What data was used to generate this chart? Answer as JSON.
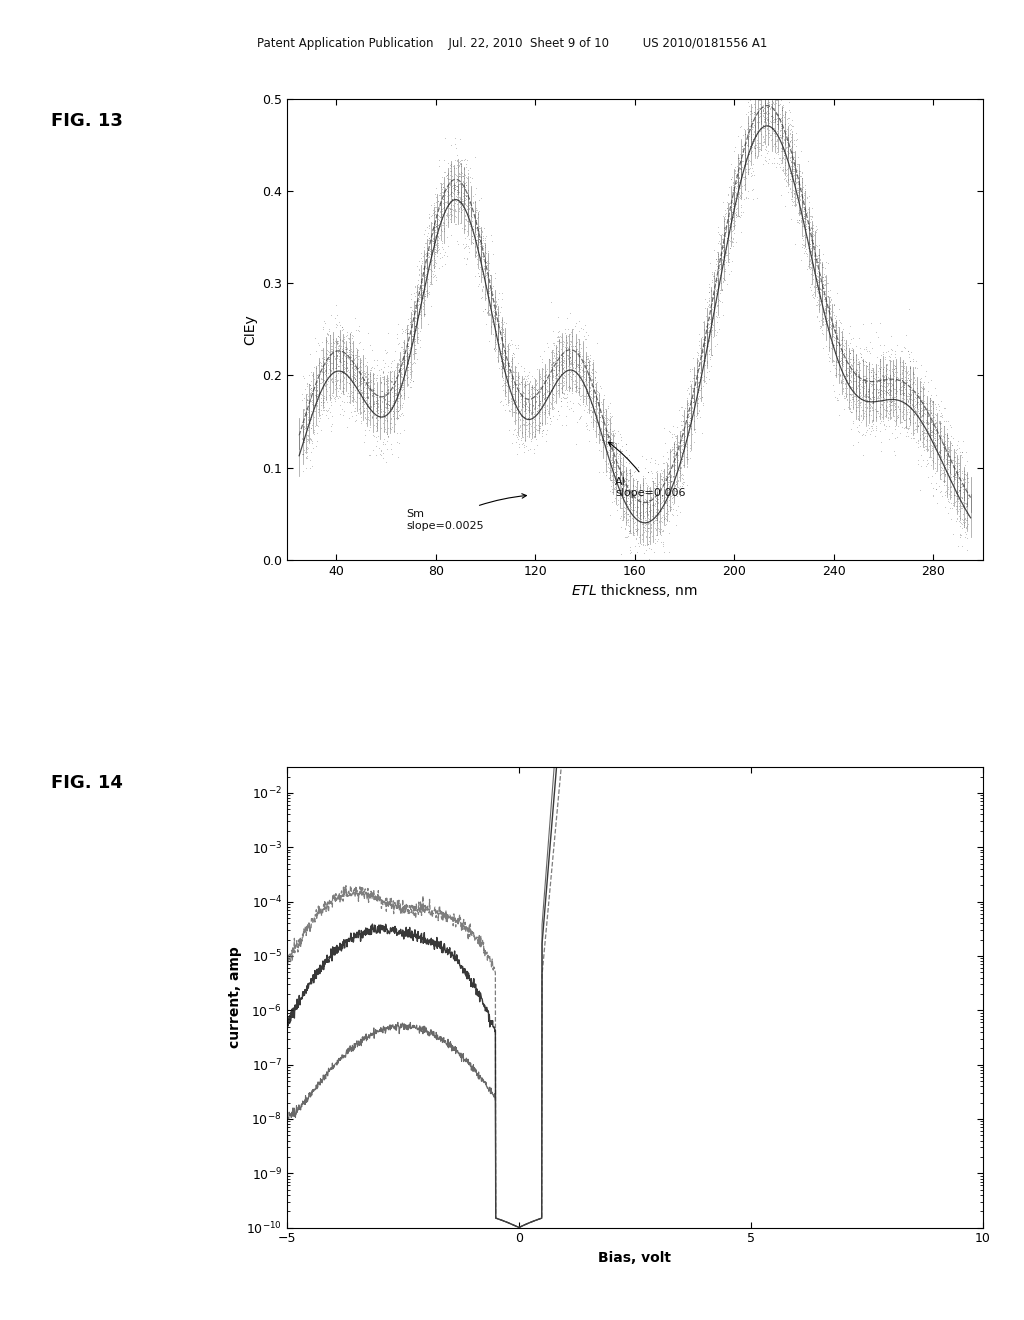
{
  "header_text": "Patent Application Publication    Jul. 22, 2010  Sheet 9 of 10         US 2010/0181556 A1",
  "fig13": {
    "title": "FIG. 13",
    "xlabel_italic": "ETL",
    "xlabel_rest": " thickness, nm",
    "ylabel": "CIEy",
    "xlim": [
      20,
      300
    ],
    "ylim": [
      0,
      0.5
    ],
    "xticks": [
      40,
      80,
      120,
      160,
      200,
      240,
      280
    ],
    "yticks": [
      0,
      0.1,
      0.2,
      0.3,
      0.4,
      0.5
    ],
    "label_sm": "Sm\nslope=0.0025",
    "label_al": "Al\nslope=0.006"
  },
  "fig14": {
    "title": "FIG. 14",
    "xlabel": "Bias, volt",
    "ylabel": "current, amp",
    "xlim": [
      -5,
      10
    ],
    "ylim_min": 1e-10,
    "ylim_max": 0.03,
    "xticks": [
      -5,
      0,
      5,
      10
    ]
  },
  "bg_color": "#ffffff"
}
